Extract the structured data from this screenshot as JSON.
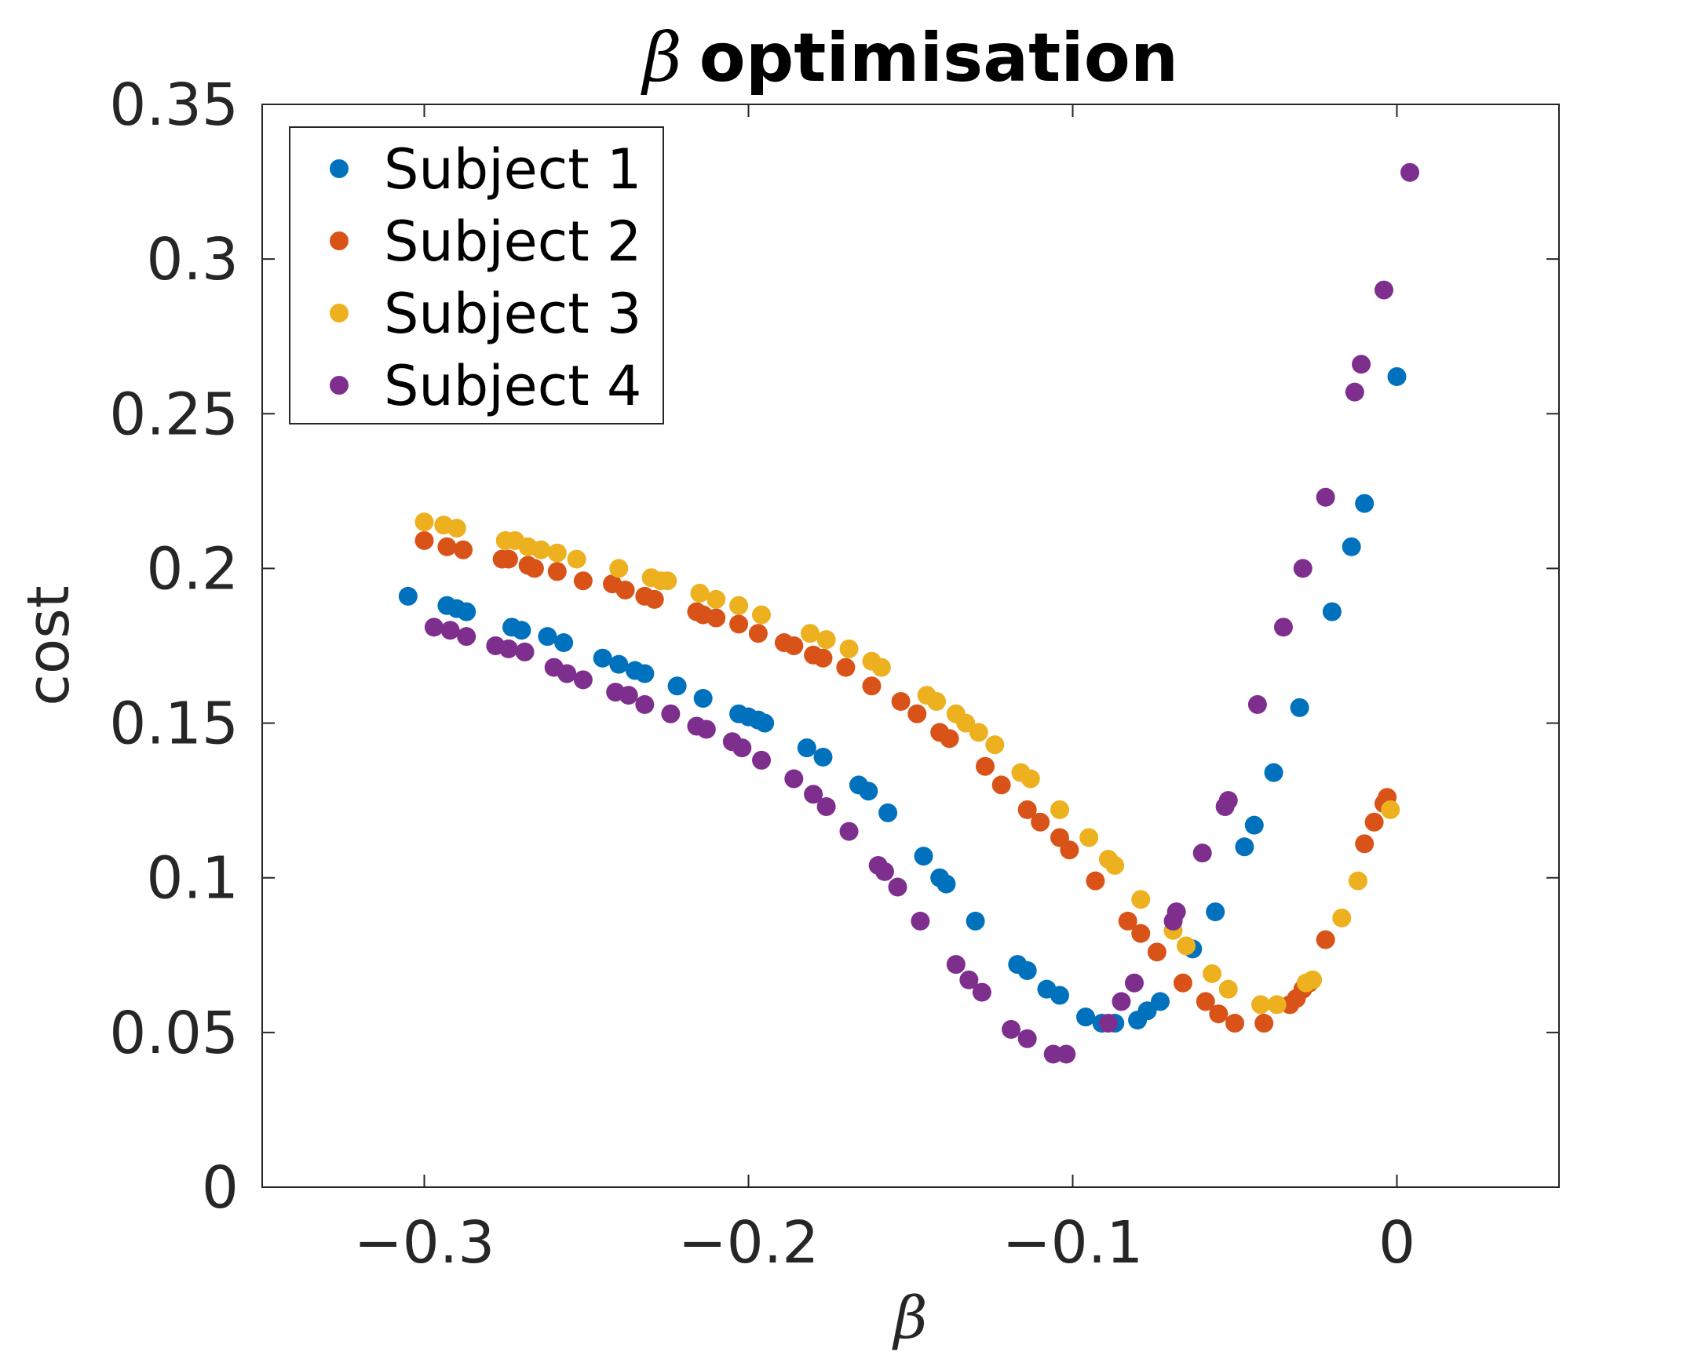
{
  "chart_data": {
    "type": "scatter",
    "title_symbol": "β",
    "title_text": "optimisation",
    "xlabel": "β",
    "ylabel": "cost",
    "xlim": [
      -0.35,
      0.05
    ],
    "ylim": [
      0,
      0.35
    ],
    "xticks": [
      -0.3,
      -0.2,
      -0.1,
      0
    ],
    "xtick_labels": [
      "−0.3",
      "−0.2",
      "−0.1",
      "0"
    ],
    "yticks": [
      0,
      0.05,
      0.1,
      0.15,
      0.2,
      0.25,
      0.3,
      0.35
    ],
    "ytick_labels": [
      "0",
      "0.05",
      "0.1",
      "0.15",
      "0.2",
      "0.25",
      "0.3",
      "0.35"
    ],
    "grid": false,
    "legend_position": "top-left",
    "series": [
      {
        "name": "Subject 1",
        "color": "#0072BD",
        "points": [
          [
            -0.305,
            0.191
          ],
          [
            -0.293,
            0.188
          ],
          [
            -0.29,
            0.187
          ],
          [
            -0.287,
            0.186
          ],
          [
            -0.273,
            0.181
          ],
          [
            -0.27,
            0.18
          ],
          [
            -0.262,
            0.178
          ],
          [
            -0.257,
            0.176
          ],
          [
            -0.245,
            0.171
          ],
          [
            -0.24,
            0.169
          ],
          [
            -0.235,
            0.167
          ],
          [
            -0.232,
            0.166
          ],
          [
            -0.222,
            0.162
          ],
          [
            -0.214,
            0.158
          ],
          [
            -0.203,
            0.153
          ],
          [
            -0.2,
            0.152
          ],
          [
            -0.197,
            0.151
          ],
          [
            -0.195,
            0.15
          ],
          [
            -0.182,
            0.142
          ],
          [
            -0.177,
            0.139
          ],
          [
            -0.166,
            0.13
          ],
          [
            -0.163,
            0.128
          ],
          [
            -0.157,
            0.121
          ],
          [
            -0.146,
            0.107
          ],
          [
            -0.141,
            0.1
          ],
          [
            -0.139,
            0.098
          ],
          [
            -0.13,
            0.086
          ],
          [
            -0.117,
            0.072
          ],
          [
            -0.114,
            0.07
          ],
          [
            -0.108,
            0.064
          ],
          [
            -0.104,
            0.062
          ],
          [
            -0.096,
            0.055
          ],
          [
            -0.091,
            0.053
          ],
          [
            -0.087,
            0.053
          ],
          [
            -0.08,
            0.054
          ],
          [
            -0.077,
            0.057
          ],
          [
            -0.073,
            0.06
          ],
          [
            -0.063,
            0.077
          ],
          [
            -0.056,
            0.089
          ],
          [
            -0.047,
            0.11
          ],
          [
            -0.044,
            0.117
          ],
          [
            -0.038,
            0.134
          ],
          [
            -0.03,
            0.155
          ],
          [
            -0.02,
            0.186
          ],
          [
            -0.014,
            0.207
          ],
          [
            -0.01,
            0.221
          ],
          [
            0.0,
            0.262
          ]
        ]
      },
      {
        "name": "Subject 2",
        "color": "#D95319",
        "points": [
          [
            -0.3,
            0.209
          ],
          [
            -0.293,
            0.207
          ],
          [
            -0.288,
            0.206
          ],
          [
            -0.276,
            0.203
          ],
          [
            -0.274,
            0.203
          ],
          [
            -0.268,
            0.201
          ],
          [
            -0.266,
            0.2
          ],
          [
            -0.259,
            0.199
          ],
          [
            -0.251,
            0.196
          ],
          [
            -0.242,
            0.195
          ],
          [
            -0.238,
            0.193
          ],
          [
            -0.232,
            0.191
          ],
          [
            -0.229,
            0.19
          ],
          [
            -0.216,
            0.186
          ],
          [
            -0.214,
            0.185
          ],
          [
            -0.21,
            0.184
          ],
          [
            -0.203,
            0.182
          ],
          [
            -0.197,
            0.179
          ],
          [
            -0.189,
            0.176
          ],
          [
            -0.186,
            0.175
          ],
          [
            -0.18,
            0.172
          ],
          [
            -0.177,
            0.171
          ],
          [
            -0.17,
            0.168
          ],
          [
            -0.162,
            0.162
          ],
          [
            -0.153,
            0.157
          ],
          [
            -0.148,
            0.153
          ],
          [
            -0.141,
            0.147
          ],
          [
            -0.138,
            0.145
          ],
          [
            -0.127,
            0.136
          ],
          [
            -0.122,
            0.13
          ],
          [
            -0.114,
            0.122
          ],
          [
            -0.11,
            0.118
          ],
          [
            -0.104,
            0.113
          ],
          [
            -0.101,
            0.109
          ],
          [
            -0.093,
            0.099
          ],
          [
            -0.083,
            0.086
          ],
          [
            -0.079,
            0.082
          ],
          [
            -0.074,
            0.076
          ],
          [
            -0.066,
            0.066
          ],
          [
            -0.059,
            0.06
          ],
          [
            -0.055,
            0.056
          ],
          [
            -0.05,
            0.053
          ],
          [
            -0.041,
            0.053
          ],
          [
            -0.033,
            0.059
          ],
          [
            -0.031,
            0.061
          ],
          [
            -0.029,
            0.064
          ],
          [
            -0.027,
            0.066
          ],
          [
            -0.022,
            0.08
          ],
          [
            -0.01,
            0.111
          ],
          [
            -0.007,
            0.118
          ],
          [
            -0.004,
            0.124
          ],
          [
            -0.003,
            0.126
          ]
        ]
      },
      {
        "name": "Subject 3",
        "color": "#EDB120",
        "points": [
          [
            -0.3,
            0.215
          ],
          [
            -0.294,
            0.214
          ],
          [
            -0.29,
            0.213
          ],
          [
            -0.275,
            0.209
          ],
          [
            -0.272,
            0.209
          ],
          [
            -0.268,
            0.207
          ],
          [
            -0.264,
            0.206
          ],
          [
            -0.259,
            0.205
          ],
          [
            -0.253,
            0.203
          ],
          [
            -0.24,
            0.2
          ],
          [
            -0.23,
            0.197
          ],
          [
            -0.227,
            0.196
          ],
          [
            -0.225,
            0.196
          ],
          [
            -0.215,
            0.192
          ],
          [
            -0.21,
            0.19
          ],
          [
            -0.203,
            0.188
          ],
          [
            -0.196,
            0.185
          ],
          [
            -0.181,
            0.179
          ],
          [
            -0.176,
            0.177
          ],
          [
            -0.169,
            0.174
          ],
          [
            -0.162,
            0.17
          ],
          [
            -0.159,
            0.168
          ],
          [
            -0.145,
            0.159
          ],
          [
            -0.142,
            0.157
          ],
          [
            -0.136,
            0.153
          ],
          [
            -0.133,
            0.15
          ],
          [
            -0.129,
            0.147
          ],
          [
            -0.124,
            0.143
          ],
          [
            -0.116,
            0.134
          ],
          [
            -0.113,
            0.132
          ],
          [
            -0.104,
            0.122
          ],
          [
            -0.095,
            0.113
          ],
          [
            -0.089,
            0.106
          ],
          [
            -0.087,
            0.104
          ],
          [
            -0.079,
            0.093
          ],
          [
            -0.069,
            0.083
          ],
          [
            -0.065,
            0.078
          ],
          [
            -0.057,
            0.069
          ],
          [
            -0.052,
            0.064
          ],
          [
            -0.042,
            0.059
          ],
          [
            -0.037,
            0.059
          ],
          [
            -0.028,
            0.066
          ],
          [
            -0.026,
            0.067
          ],
          [
            -0.017,
            0.087
          ],
          [
            -0.012,
            0.099
          ],
          [
            -0.002,
            0.122
          ]
        ]
      },
      {
        "name": "Subject 4",
        "color": "#7E2F8E",
        "points": [
          [
            -0.297,
            0.181
          ],
          [
            -0.292,
            0.18
          ],
          [
            -0.287,
            0.178
          ],
          [
            -0.278,
            0.175
          ],
          [
            -0.274,
            0.174
          ],
          [
            -0.269,
            0.173
          ],
          [
            -0.26,
            0.168
          ],
          [
            -0.256,
            0.166
          ],
          [
            -0.251,
            0.164
          ],
          [
            -0.241,
            0.16
          ],
          [
            -0.237,
            0.159
          ],
          [
            -0.232,
            0.156
          ],
          [
            -0.224,
            0.153
          ],
          [
            -0.216,
            0.149
          ],
          [
            -0.213,
            0.148
          ],
          [
            -0.205,
            0.144
          ],
          [
            -0.202,
            0.142
          ],
          [
            -0.196,
            0.138
          ],
          [
            -0.186,
            0.132
          ],
          [
            -0.18,
            0.127
          ],
          [
            -0.176,
            0.123
          ],
          [
            -0.169,
            0.115
          ],
          [
            -0.16,
            0.104
          ],
          [
            -0.158,
            0.102
          ],
          [
            -0.154,
            0.097
          ],
          [
            -0.147,
            0.086
          ],
          [
            -0.136,
            0.072
          ],
          [
            -0.132,
            0.067
          ],
          [
            -0.128,
            0.063
          ],
          [
            -0.119,
            0.051
          ],
          [
            -0.114,
            0.048
          ],
          [
            -0.106,
            0.043
          ],
          [
            -0.102,
            0.043
          ],
          [
            -0.089,
            0.053
          ],
          [
            -0.085,
            0.06
          ],
          [
            -0.081,
            0.066
          ],
          [
            -0.069,
            0.086
          ],
          [
            -0.068,
            0.089
          ],
          [
            -0.06,
            0.108
          ],
          [
            -0.053,
            0.123
          ],
          [
            -0.052,
            0.125
          ],
          [
            -0.043,
            0.156
          ],
          [
            -0.035,
            0.181
          ],
          [
            -0.029,
            0.2
          ],
          [
            -0.022,
            0.223
          ],
          [
            -0.013,
            0.257
          ],
          [
            -0.011,
            0.266
          ],
          [
            -0.004,
            0.29
          ],
          [
            0.004,
            0.328
          ]
        ]
      }
    ]
  }
}
